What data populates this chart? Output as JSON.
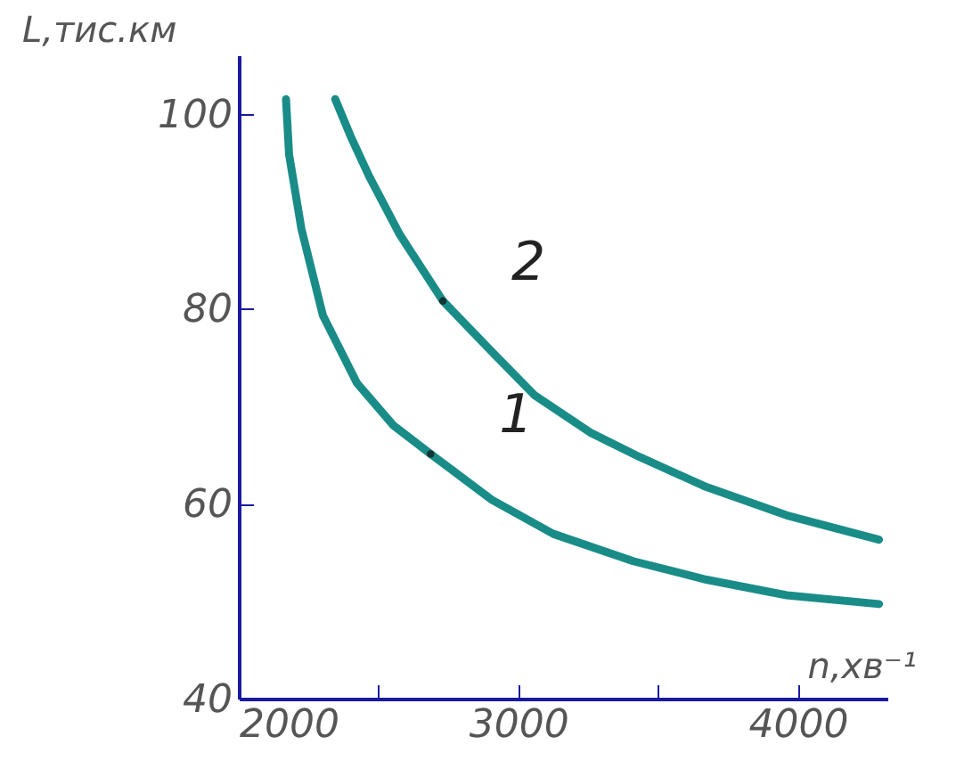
{
  "chart_data": {
    "type": "line",
    "xlabel": "n,хв⁻¹",
    "ylabel": "L,тис.км",
    "xlim": [
      2000,
      4320
    ],
    "ylim": [
      40,
      106
    ],
    "xticks": [
      2000,
      {
        "value": 2500,
        "label": null
      },
      3000,
      {
        "value": 3500,
        "label": null
      },
      4000
    ],
    "yticks": [
      40,
      60,
      80,
      100
    ],
    "series": [
      {
        "color": "#1a8c88",
        "x": [
          2169,
          2180,
          2224,
          2301,
          2422,
          2554,
          2686,
          2905,
          3125,
          3411,
          3673,
          3960,
          4290
        ],
        "values": [
          101.5,
          95.8,
          88.2,
          79.3,
          72.4,
          68.0,
          65.1,
          60.4,
          56.9,
          54.1,
          52.2,
          50.6,
          49.7
        ]
      },
      {
        "color": "#1a8c88",
        "x": [
          2345,
          2400,
          2466,
          2576,
          2730,
          2905,
          3059,
          3257,
          3433,
          3673,
          3960,
          4290
        ],
        "values": [
          101.5,
          97.7,
          93.6,
          87.6,
          80.8,
          75.6,
          71.1,
          67.3,
          64.8,
          61.7,
          58.8,
          56.3
        ]
      }
    ],
    "annotations": [
      {
        "text": "1",
        "x": 2686,
        "y": 65.1
      },
      {
        "text": "2",
        "x": 2730,
        "y": 80.8
      }
    ],
    "grid": false,
    "marker": "none",
    "line_style": "solid"
  }
}
